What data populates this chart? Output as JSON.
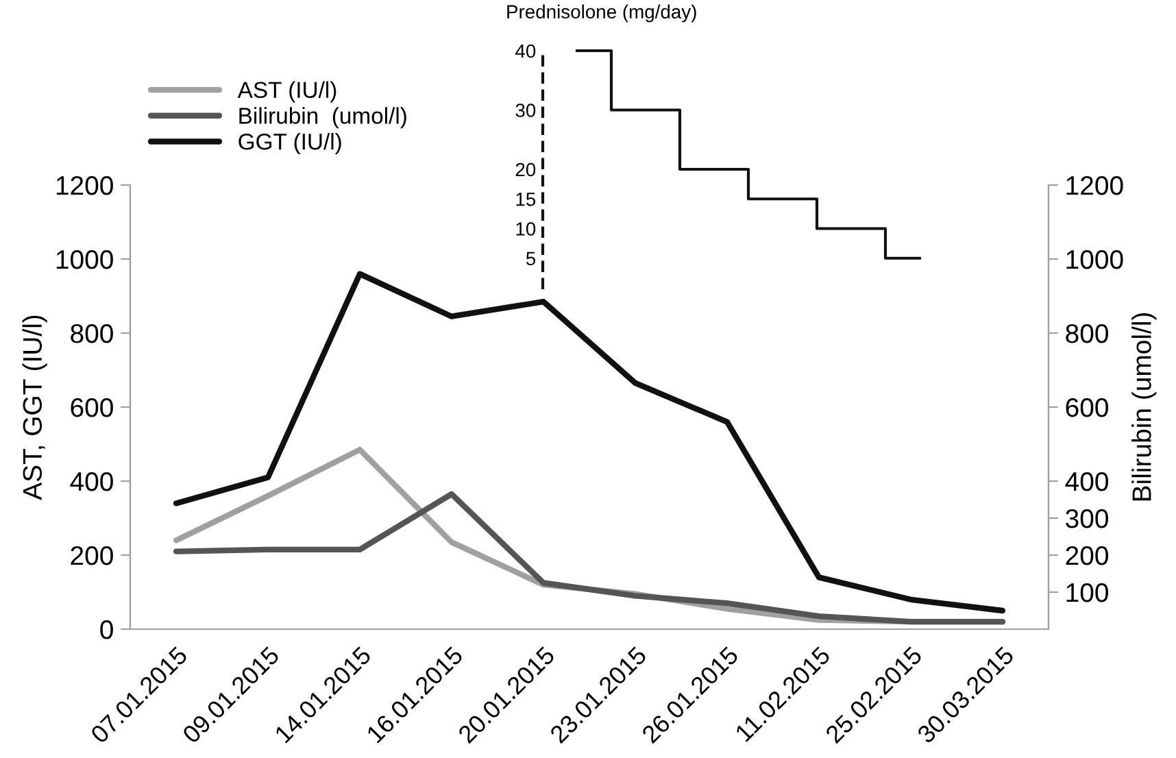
{
  "chart_data": [
    {
      "type": "line",
      "ylabel": "AST, GGT (IU/l)",
      "y2label": "Bilirubin (umol/l)",
      "categories": [
        "07.01.2015",
        "09.01.2015",
        "14.01.2015",
        "16.01.2015",
        "20.01.2015",
        "23.01.2015",
        "26.01.2015",
        "11.02.2015",
        "25.02.2015",
        "30.03.2015"
      ],
      "series": [
        {
          "name": "AST (IU/l)",
          "color": "#a0a0a0",
          "values": [
            240,
            360,
            485,
            235,
            120,
            95,
            55,
            25,
            20,
            20
          ]
        },
        {
          "name": "Bilirubin  (umol/l)",
          "color": "#555555",
          "axis": "y2",
          "values": [
            210,
            215,
            215,
            365,
            125,
            90,
            70,
            35,
            20,
            20
          ]
        },
        {
          "name": "GGT (IU/l)",
          "color": "#111111",
          "values": [
            340,
            410,
            960,
            845,
            885,
            665,
            560,
            140,
            80,
            50
          ]
        }
      ],
      "ylim": [
        0,
        1200
      ],
      "yticks": [
        0,
        200,
        400,
        600,
        800,
        1000,
        1200
      ],
      "y2lim": [
        0,
        1200
      ],
      "y2ticks": [
        100,
        200,
        300,
        400,
        600,
        800,
        1000,
        1200
      ],
      "grid": false,
      "legend": "top left",
      "marker": "none",
      "line_style": "solid"
    },
    {
      "type": "step",
      "title": "Prednisolone (mg/day)",
      "categories": [
        null,
        null,
        null,
        null,
        null,
        null
      ],
      "values": [
        40,
        30,
        20,
        15,
        10,
        5
      ],
      "color": "#111111",
      "ylim": [
        0,
        40
      ],
      "yticks": [
        5,
        10,
        15,
        20,
        30,
        40
      ],
      "tick_labels": "y",
      "line_style": "solid"
    }
  ]
}
